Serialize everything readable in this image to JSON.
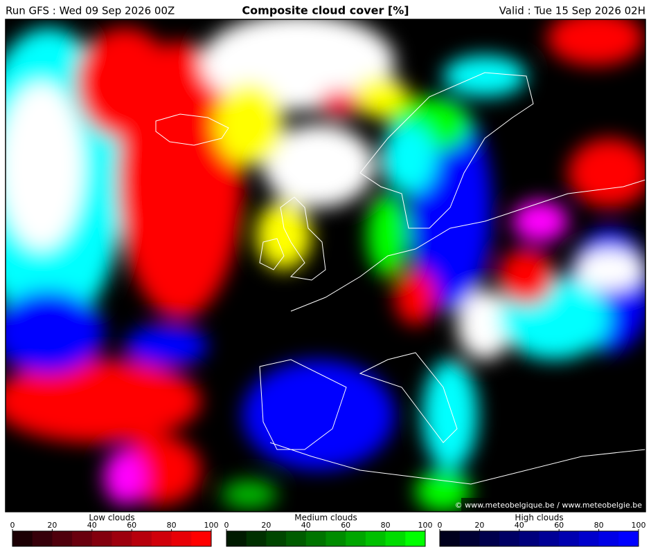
{
  "header": {
    "run": "Run GFS : Wed 09 Sep 2026 00Z",
    "title": "Composite cloud cover [%]",
    "valid": "Valid : Tue 15 Sep 2026 02H"
  },
  "map": {
    "copyright": "© www.meteobelgique.be / www.meteobelgie.be"
  },
  "legend": {
    "colorbars": [
      {
        "title": "Low clouds",
        "lim": [
          0,
          100
        ],
        "ticks": [
          0,
          20,
          40,
          60,
          80,
          100
        ],
        "colors": [
          "#1c0004",
          "#36000a",
          "#4f000c",
          "#69000e",
          "#83000e",
          "#9d000e",
          "#b7000c",
          "#d0000a",
          "#e80006",
          "#ff0000"
        ]
      },
      {
        "title": "Medium clouds",
        "lim": [
          0,
          100
        ],
        "ticks": [
          0,
          20,
          40,
          60,
          80,
          100
        ],
        "colors": [
          "#001a00",
          "#003000",
          "#004600",
          "#005c00",
          "#007400",
          "#008c00",
          "#00a600",
          "#00c000",
          "#00dc00",
          "#00ff00"
        ]
      },
      {
        "title": "High clouds",
        "lim": [
          0,
          100
        ],
        "ticks": [
          0,
          20,
          40,
          60,
          80,
          100
        ],
        "colors": [
          "#00001c",
          "#000034",
          "#00004c",
          "#000064",
          "#00007c",
          "#000096",
          "#0000b0",
          "#0000cc",
          "#0000e6",
          "#0000ff"
        ]
      }
    ]
  }
}
